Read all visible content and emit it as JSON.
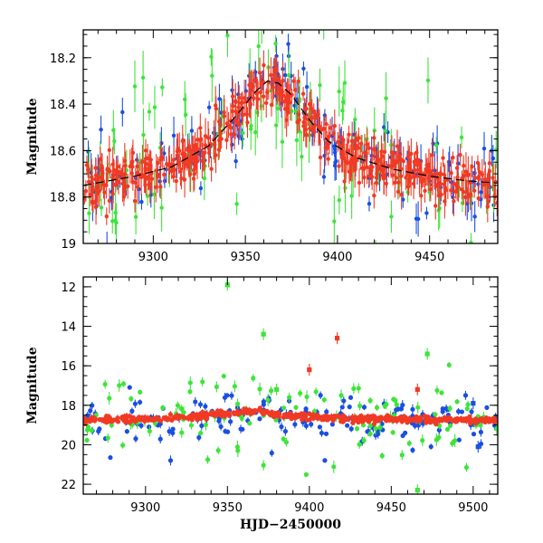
{
  "colors": {
    "blue": "#1a4fe0",
    "red": "#f03a24",
    "green": "#3ee43a",
    "model": "#000000"
  },
  "chart_data": [
    {
      "type": "scatter",
      "title": "",
      "xlabel": "",
      "ylabel": "Magnitude",
      "xlim": [
        9262,
        9487
      ],
      "ylim": [
        19.0,
        18.08
      ],
      "y_inverted": true,
      "xticks": [
        9300,
        9350,
        9400,
        9450
      ],
      "xtick_labels": [
        "9300",
        "9350",
        "9400",
        "9450"
      ],
      "yticks": [
        18.2,
        18.4,
        18.6,
        18.8,
        19.0
      ],
      "ytick_labels": [
        "18.2",
        "18.4",
        "18.6",
        "18.8",
        "19"
      ],
      "model_curve": {
        "name": "model",
        "style": "dashed",
        "x": [
          9262,
          9290,
          9310,
          9330,
          9345,
          9355,
          9362,
          9368,
          9375,
          9385,
          9395,
          9410,
          9430,
          9450,
          9470,
          9487
        ],
        "y": [
          18.75,
          18.71,
          18.67,
          18.58,
          18.45,
          18.35,
          18.3,
          18.31,
          18.36,
          18.47,
          18.56,
          18.63,
          18.68,
          18.71,
          18.73,
          18.74
        ]
      },
      "series": [
        {
          "name": "blue",
          "color": "#1a4fe0",
          "seed": 11,
          "n": 160,
          "scatter": 0.09,
          "err": 0.05
        },
        {
          "name": "green",
          "color": "#3ee43a",
          "seed": 23,
          "n": 110,
          "scatter": 0.2,
          "err": 0.07
        },
        {
          "name": "red",
          "color": "#f03a24",
          "seed": 37,
          "n": 520,
          "scatter": 0.05,
          "err": 0.05
        }
      ]
    },
    {
      "type": "scatter",
      "title": "",
      "xlabel": "HJD−2450000",
      "ylabel": "Magnitude",
      "xlim": [
        9262,
        9515
      ],
      "ylim": [
        22.5,
        11.5
      ],
      "y_inverted": true,
      "xticks": [
        9300,
        9350,
        9400,
        9450,
        9500
      ],
      "xtick_labels": [
        "9300",
        "9350",
        "9400",
        "9450",
        "9500"
      ],
      "yticks": [
        12,
        14,
        16,
        18,
        20,
        22
      ],
      "ytick_labels": [
        "12",
        "14",
        "16",
        "18",
        "20",
        "22"
      ],
      "outliers": [
        {
          "series": "green",
          "x": 9350,
          "y": 11.9
        },
        {
          "series": "green",
          "x": 9372,
          "y": 14.4
        },
        {
          "series": "red",
          "x": 9417,
          "y": 14.6
        },
        {
          "series": "red",
          "x": 9400,
          "y": 16.2
        },
        {
          "series": "green",
          "x": 9472,
          "y": 15.4
        },
        {
          "series": "red",
          "x": 9466,
          "y": 17.2
        },
        {
          "series": "green",
          "x": 9466,
          "y": 22.3
        },
        {
          "series": "blue",
          "x": 9503,
          "y": 20.1
        },
        {
          "series": "blue",
          "x": 9500,
          "y": 17.9
        },
        {
          "series": "green",
          "x": 9380,
          "y": 17.2
        }
      ],
      "series": [
        {
          "name": "blue",
          "color": "#1a4fe0",
          "seed": 51,
          "n": 170,
          "scatter": 0.5,
          "err": 0.15
        },
        {
          "name": "green",
          "color": "#3ee43a",
          "seed": 63,
          "n": 130,
          "scatter": 0.9,
          "err": 0.2
        },
        {
          "name": "red",
          "color": "#f03a24",
          "seed": 77,
          "n": 520,
          "scatter": 0.08,
          "err": 0.1
        }
      ]
    }
  ]
}
